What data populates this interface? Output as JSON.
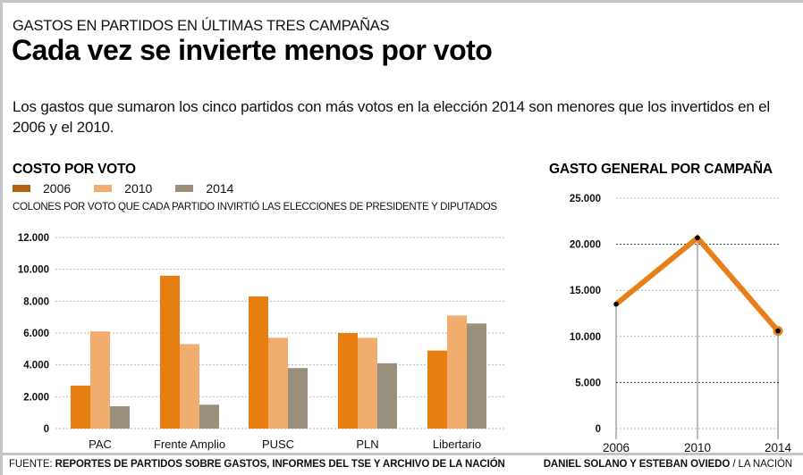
{
  "header": {
    "kicker": "GASTOS EN PARTIDOS EN ÚLTIMAS TRES CAMPAÑAS",
    "headline": "Cada vez se invierte menos por voto",
    "intro": "Los gastos que sumaron los cinco partidos con más votos en la elección 2014 son menores que los invertidos en el 2006 y el 2010."
  },
  "colors": {
    "c2006": "#e67e12",
    "c2006_legend": "#b5620f",
    "c2010": "#f0ad6e",
    "c2014": "#9a8e7c",
    "line": "#e8801a"
  },
  "chart_data": [
    {
      "type": "bar",
      "title": "COSTO POR VOTO",
      "subtitle": "COLONES POR VOTO QUE CADA PARTIDO INVIRTIÓ LAS ELECCIONES DE PRESIDENTE Y DIPUTADOS",
      "categories": [
        "PAC",
        "Frente Amplio",
        "PUSC",
        "PLN",
        "Libertario"
      ],
      "series": [
        {
          "name": "2006",
          "values": [
            2700,
            9600,
            8300,
            6000,
            4900
          ]
        },
        {
          "name": "2010",
          "values": [
            6100,
            5300,
            5700,
            5700,
            7100
          ]
        },
        {
          "name": "2014",
          "values": [
            1400,
            1500,
            3800,
            4100,
            6600
          ]
        }
      ],
      "yticks": [
        0,
        2000,
        4000,
        6000,
        8000,
        10000,
        12000
      ],
      "ytick_labels": [
        "0",
        "2.000",
        "4.000",
        "6.000",
        "8.000",
        "10.000",
        "12.000"
      ],
      "ylim": [
        0,
        12000
      ],
      "xlabel": "",
      "ylabel": "",
      "grid": true,
      "legend": "top-left"
    },
    {
      "type": "line",
      "title": "GASTO GENERAL POR CAMPAÑA",
      "x": [
        "2006",
        "2010",
        "2014"
      ],
      "series": [
        {
          "name": "Gasto general",
          "values": [
            13500,
            20700,
            10600
          ]
        }
      ],
      "yticks": [
        0,
        5000,
        10000,
        15000,
        20000,
        25000
      ],
      "ytick_labels": [
        "0",
        "5.000",
        "10.000",
        "15.000",
        "20.000",
        "25.000"
      ],
      "ylim": [
        0,
        25000
      ],
      "xlabel": "",
      "ylabel": "",
      "grid": true
    }
  ],
  "footer": {
    "source_label": "FUENTE:",
    "source_text": "REPORTES DE PARTIDOS SOBRE GASTOS, INFORMES DEL TSE Y ARCHIVO DE LA NACIÓN",
    "authors": "DANIEL SOLANO Y ESTEBAN OVIEDO",
    "separator": "/",
    "publication": "LA NACIÓN"
  }
}
